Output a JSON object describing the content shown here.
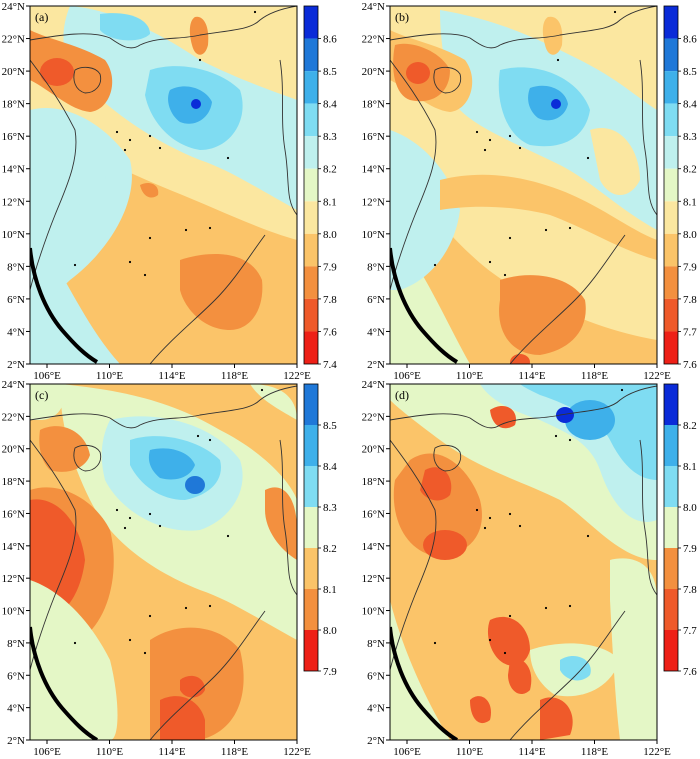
{
  "figure": {
    "lat_ticks": [
      "2°N",
      "4°N",
      "6°N",
      "8°N",
      "10°N",
      "12°N",
      "14°N",
      "16°N",
      "18°N",
      "20°N",
      "22°N",
      "24°N"
    ],
    "lon_ticks": [
      "106°E",
      "110°E",
      "114°E",
      "118°E",
      "122°E"
    ]
  },
  "panels": [
    {
      "label": "(a)",
      "colorbar": [
        "8.6",
        "8.5",
        "8.4",
        "8.3",
        "8.2",
        "8.1",
        "8.0",
        "7.9",
        "7.8",
        "7.6",
        "7.4"
      ],
      "colors": [
        "#0a2bd8",
        "#1f78d8",
        "#3eb0ea",
        "#7fdcf2",
        "#bff0ee",
        "#e4f7c6",
        "#fbe7a0",
        "#fbc469",
        "#f3903f",
        "#ef5a2a",
        "#ee2017"
      ]
    },
    {
      "label": "(b)",
      "colorbar": [
        "8.6",
        "8.5",
        "8.4",
        "8.3",
        "8.2",
        "8.1",
        "8.0",
        "7.9",
        "7.8",
        "7.7",
        "7.6"
      ],
      "colors": [
        "#0a2bd8",
        "#1f78d8",
        "#3eb0ea",
        "#7fdcf2",
        "#bff0ee",
        "#e4f7c6",
        "#fbe7a0",
        "#fbc469",
        "#f3903f",
        "#ef5a2a",
        "#ee2017"
      ]
    },
    {
      "label": "(c)",
      "colorbar": [
        "8.5",
        "8.4",
        "8.3",
        "8.2",
        "8.1",
        "8.0",
        "7.9"
      ],
      "colors": [
        "#1f78d8",
        "#3eb0ea",
        "#7fdcf2",
        "#e4f7c6",
        "#fbc469",
        "#f3903f",
        "#ee2017"
      ]
    },
    {
      "label": "(d)",
      "colorbar": [
        "8.2",
        "8.1",
        "8.0",
        "7.9",
        "7.8",
        "7.7",
        "7.6"
      ],
      "colors": [
        "#0a2bd8",
        "#3eb0ea",
        "#7fdcf2",
        "#e4f7c6",
        "#f3903f",
        "#ef5a2a",
        "#ee2017"
      ]
    }
  ]
}
